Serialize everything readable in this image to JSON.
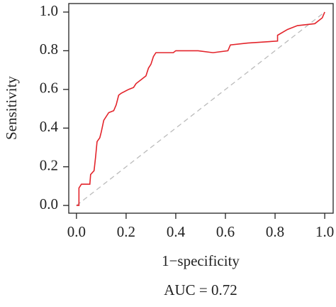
{
  "chart_data": {
    "type": "line",
    "x_label": "1−specificity",
    "y_label": "Sensitivity",
    "annotation": "AUC = 0.72",
    "x": [
      0,
      0.01,
      0.01,
      0.02,
      0.054,
      0.057,
      0.071,
      0.077,
      0.083,
      0.094,
      0.1,
      0.11,
      0.13,
      0.15,
      0.16,
      0.17,
      0.18,
      0.21,
      0.23,
      0.24,
      0.26,
      0.28,
      0.29,
      0.3,
      0.31,
      0.32,
      0.39,
      0.4,
      0.49,
      0.55,
      0.61,
      0.62,
      0.69,
      0.81,
      0.81,
      0.85,
      0.89,
      0.96,
      0.99,
      1
    ],
    "series": [
      {
        "color": "#e3242b",
        "values": [
          0,
          0,
          0.09,
          0.11,
          0.11,
          0.16,
          0.18,
          0.25,
          0.33,
          0.35,
          0.38,
          0.44,
          0.48,
          0.49,
          0.52,
          0.57,
          0.58,
          0.6,
          0.61,
          0.63,
          0.65,
          0.67,
          0.71,
          0.73,
          0.77,
          0.79,
          0.79,
          0.8,
          0.8,
          0.79,
          0.8,
          0.83,
          0.84,
          0.85,
          0.88,
          0.91,
          0.93,
          0.94,
          0.97,
          1
        ]
      }
    ],
    "reference_color": "#bbbbbb",
    "xlim": [
      -0.031,
      1.034
    ],
    "ylim": [
      -0.04,
      1.044
    ],
    "xticks": [
      {
        "value": 0,
        "label": "0.0"
      },
      0.2,
      0.4,
      0.6,
      0.8,
      {
        "value": 1,
        "label": "1.0"
      }
    ],
    "yticks": [
      {
        "value": 0,
        "label": "0.0"
      },
      0.2,
      0.4,
      0.6,
      0.8,
      {
        "value": 1,
        "label": "1.0"
      }
    ]
  }
}
